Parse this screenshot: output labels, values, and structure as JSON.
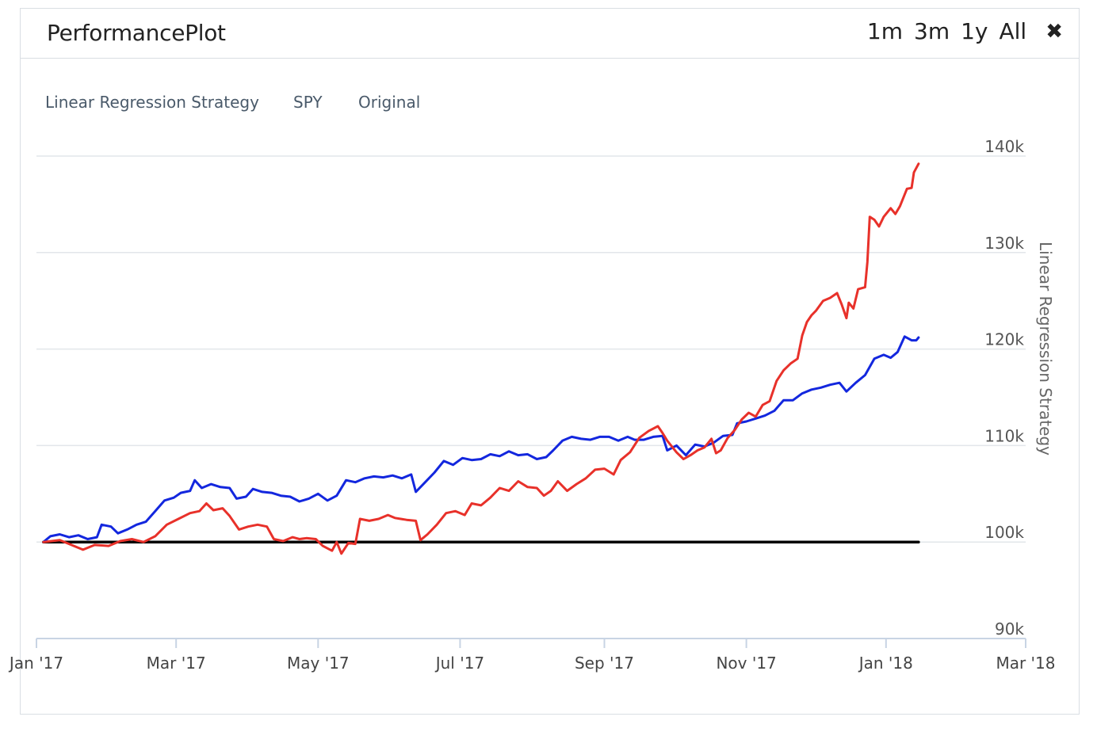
{
  "header": {
    "title": "PerformancePlot",
    "ranges": [
      "1m",
      "3m",
      "1y",
      "All"
    ],
    "close_icon": "close-icon"
  },
  "chart_data": {
    "type": "line",
    "title": "",
    "xlabel": "",
    "ylabel": "Linear Regression Strategy",
    "legend": [
      "Linear Regression Strategy",
      "SPY",
      "Original"
    ],
    "legend_position": "top-left",
    "grid": true,
    "xlim": [
      "2016-12-31",
      "2018-03-01"
    ],
    "ylim": [
      90000,
      140000
    ],
    "x_ticks": [
      {
        "date": "2016-12-31",
        "label": "Jan '17"
      },
      {
        "date": "2017-03-01",
        "label": "Mar '17"
      },
      {
        "date": "2017-05-01",
        "label": "May '17"
      },
      {
        "date": "2017-07-01",
        "label": "Jul '17"
      },
      {
        "date": "2017-09-01",
        "label": "Sep '17"
      },
      {
        "date": "2017-11-01",
        "label": "Nov '17"
      },
      {
        "date": "2017-12-31",
        "label": "Jan '18"
      },
      {
        "date": "2018-03-01",
        "label": "Mar '18"
      }
    ],
    "y_ticks": [
      {
        "value": 90000,
        "label": "90k"
      },
      {
        "value": 100000,
        "label": "100k"
      },
      {
        "value": 110000,
        "label": "110k"
      },
      {
        "value": 120000,
        "label": "120k"
      },
      {
        "value": 130000,
        "label": "130k"
      },
      {
        "value": 140000,
        "label": "140k"
      }
    ],
    "series": [
      {
        "name": "Linear Regression Strategy",
        "color": "#e8312a",
        "points": [
          [
            "2017-01-03",
            100000
          ],
          [
            "2017-01-10",
            100200
          ],
          [
            "2017-01-17",
            99500
          ],
          [
            "2017-01-20",
            99200
          ],
          [
            "2017-01-25",
            99700
          ],
          [
            "2017-01-31",
            99600
          ],
          [
            "2017-02-05",
            100100
          ],
          [
            "2017-02-10",
            100300
          ],
          [
            "2017-02-15",
            100000
          ],
          [
            "2017-02-20",
            100600
          ],
          [
            "2017-02-25",
            101800
          ],
          [
            "2017-03-02",
            102400
          ],
          [
            "2017-03-07",
            103000
          ],
          [
            "2017-03-11",
            103200
          ],
          [
            "2017-03-14",
            104000
          ],
          [
            "2017-03-17",
            103300
          ],
          [
            "2017-03-21",
            103500
          ],
          [
            "2017-03-24",
            102700
          ],
          [
            "2017-03-28",
            101300
          ],
          [
            "2017-04-01",
            101600
          ],
          [
            "2017-04-05",
            101800
          ],
          [
            "2017-04-09",
            101600
          ],
          [
            "2017-04-12",
            100300
          ],
          [
            "2017-04-16",
            100100
          ],
          [
            "2017-04-20",
            100500
          ],
          [
            "2017-04-23",
            100300
          ],
          [
            "2017-04-26",
            100400
          ],
          [
            "2017-04-30",
            100300
          ],
          [
            "2017-05-03",
            99600
          ],
          [
            "2017-05-07",
            99100
          ],
          [
            "2017-05-09",
            100000
          ],
          [
            "2017-05-11",
            98800
          ],
          [
            "2017-05-14",
            99900
          ],
          [
            "2017-05-17",
            99800
          ],
          [
            "2017-05-19",
            102400
          ],
          [
            "2017-05-23",
            102200
          ],
          [
            "2017-05-27",
            102400
          ],
          [
            "2017-05-31",
            102800
          ],
          [
            "2017-06-03",
            102500
          ],
          [
            "2017-06-08",
            102300
          ],
          [
            "2017-06-12",
            102200
          ],
          [
            "2017-06-14",
            100200
          ],
          [
            "2017-06-17",
            100800
          ],
          [
            "2017-06-21",
            101800
          ],
          [
            "2017-06-25",
            103000
          ],
          [
            "2017-06-29",
            103200
          ],
          [
            "2017-07-03",
            102800
          ],
          [
            "2017-07-06",
            104000
          ],
          [
            "2017-07-10",
            103800
          ],
          [
            "2017-07-14",
            104600
          ],
          [
            "2017-07-18",
            105600
          ],
          [
            "2017-07-22",
            105300
          ],
          [
            "2017-07-26",
            106300
          ],
          [
            "2017-07-30",
            105700
          ],
          [
            "2017-08-03",
            105600
          ],
          [
            "2017-08-06",
            104800
          ],
          [
            "2017-08-09",
            105300
          ],
          [
            "2017-08-12",
            106300
          ],
          [
            "2017-08-16",
            105300
          ],
          [
            "2017-08-20",
            106000
          ],
          [
            "2017-08-24",
            106600
          ],
          [
            "2017-08-28",
            107500
          ],
          [
            "2017-09-01",
            107600
          ],
          [
            "2017-09-05",
            107000
          ],
          [
            "2017-09-08",
            108500
          ],
          [
            "2017-09-12",
            109300
          ],
          [
            "2017-09-16",
            110800
          ],
          [
            "2017-09-20",
            111500
          ],
          [
            "2017-09-24",
            112000
          ],
          [
            "2017-09-26",
            111300
          ],
          [
            "2017-09-28",
            110500
          ],
          [
            "2017-10-02",
            109300
          ],
          [
            "2017-10-05",
            108600
          ],
          [
            "2017-10-08",
            109000
          ],
          [
            "2017-10-11",
            109500
          ],
          [
            "2017-10-14",
            109800
          ],
          [
            "2017-10-17",
            110700
          ],
          [
            "2017-10-19",
            109200
          ],
          [
            "2017-10-21",
            109500
          ],
          [
            "2017-10-24",
            110800
          ],
          [
            "2017-10-27",
            111600
          ],
          [
            "2017-10-30",
            112700
          ],
          [
            "2017-11-02",
            113400
          ],
          [
            "2017-11-05",
            113000
          ],
          [
            "2017-11-08",
            114200
          ],
          [
            "2017-11-11",
            114600
          ],
          [
            "2017-11-14",
            116700
          ],
          [
            "2017-11-17",
            117800
          ],
          [
            "2017-11-20",
            118500
          ],
          [
            "2017-11-23",
            119000
          ],
          [
            "2017-11-25",
            121400
          ],
          [
            "2017-11-27",
            122800
          ],
          [
            "2017-11-29",
            123500
          ],
          [
            "2017-12-01",
            124000
          ],
          [
            "2017-12-04",
            125000
          ],
          [
            "2017-12-07",
            125300
          ],
          [
            "2017-12-10",
            125800
          ],
          [
            "2017-12-12",
            124600
          ],
          [
            "2017-12-14",
            123200
          ],
          [
            "2017-12-15",
            124800
          ],
          [
            "2017-12-17",
            124200
          ],
          [
            "2017-12-19",
            126200
          ],
          [
            "2017-12-22",
            126400
          ],
          [
            "2017-12-23",
            129000
          ],
          [
            "2017-12-24",
            133700
          ],
          [
            "2017-12-26",
            133400
          ],
          [
            "2017-12-28",
            132700
          ],
          [
            "2017-12-30",
            133700
          ],
          [
            "2018-01-02",
            134600
          ],
          [
            "2018-01-04",
            134000
          ],
          [
            "2018-01-06",
            134800
          ],
          [
            "2018-01-09",
            136600
          ],
          [
            "2018-01-11",
            136700
          ],
          [
            "2018-01-12",
            138300
          ],
          [
            "2018-01-14",
            139200
          ]
        ]
      },
      {
        "name": "SPY",
        "color": "#1327de",
        "points": [
          [
            "2017-01-03",
            100000
          ],
          [
            "2017-01-06",
            100600
          ],
          [
            "2017-01-10",
            100800
          ],
          [
            "2017-01-14",
            100500
          ],
          [
            "2017-01-18",
            100700
          ],
          [
            "2017-01-22",
            100300
          ],
          [
            "2017-01-26",
            100500
          ],
          [
            "2017-01-28",
            101800
          ],
          [
            "2017-02-01",
            101600
          ],
          [
            "2017-02-04",
            100900
          ],
          [
            "2017-02-08",
            101300
          ],
          [
            "2017-02-12",
            101800
          ],
          [
            "2017-02-16",
            102100
          ],
          [
            "2017-02-20",
            103200
          ],
          [
            "2017-02-24",
            104300
          ],
          [
            "2017-02-28",
            104600
          ],
          [
            "2017-03-03",
            105100
          ],
          [
            "2017-03-07",
            105300
          ],
          [
            "2017-03-09",
            106400
          ],
          [
            "2017-03-12",
            105600
          ],
          [
            "2017-03-16",
            106000
          ],
          [
            "2017-03-20",
            105700
          ],
          [
            "2017-03-24",
            105600
          ],
          [
            "2017-03-27",
            104500
          ],
          [
            "2017-03-31",
            104700
          ],
          [
            "2017-04-03",
            105500
          ],
          [
            "2017-04-07",
            105200
          ],
          [
            "2017-04-11",
            105100
          ],
          [
            "2017-04-15",
            104800
          ],
          [
            "2017-04-19",
            104700
          ],
          [
            "2017-04-23",
            104200
          ],
          [
            "2017-04-27",
            104500
          ],
          [
            "2017-05-01",
            105000
          ],
          [
            "2017-05-05",
            104300
          ],
          [
            "2017-05-09",
            104800
          ],
          [
            "2017-05-13",
            106400
          ],
          [
            "2017-05-17",
            106200
          ],
          [
            "2017-05-21",
            106600
          ],
          [
            "2017-05-25",
            106800
          ],
          [
            "2017-05-29",
            106700
          ],
          [
            "2017-06-02",
            106900
          ],
          [
            "2017-06-06",
            106600
          ],
          [
            "2017-06-10",
            107000
          ],
          [
            "2017-06-12",
            105200
          ],
          [
            "2017-06-16",
            106200
          ],
          [
            "2017-06-20",
            107200
          ],
          [
            "2017-06-24",
            108400
          ],
          [
            "2017-06-28",
            108000
          ],
          [
            "2017-07-02",
            108700
          ],
          [
            "2017-07-06",
            108500
          ],
          [
            "2017-07-10",
            108600
          ],
          [
            "2017-07-14",
            109100
          ],
          [
            "2017-07-18",
            108900
          ],
          [
            "2017-07-22",
            109400
          ],
          [
            "2017-07-26",
            109000
          ],
          [
            "2017-07-30",
            109100
          ],
          [
            "2017-08-03",
            108600
          ],
          [
            "2017-08-07",
            108800
          ],
          [
            "2017-08-10",
            109500
          ],
          [
            "2017-08-14",
            110500
          ],
          [
            "2017-08-18",
            110900
          ],
          [
            "2017-08-22",
            110700
          ],
          [
            "2017-08-26",
            110600
          ],
          [
            "2017-08-30",
            110900
          ],
          [
            "2017-09-03",
            110900
          ],
          [
            "2017-09-07",
            110500
          ],
          [
            "2017-09-11",
            110900
          ],
          [
            "2017-09-14",
            110600
          ],
          [
            "2017-09-18",
            110600
          ],
          [
            "2017-09-22",
            110900
          ],
          [
            "2017-09-26",
            111000
          ],
          [
            "2017-09-28",
            109500
          ],
          [
            "2017-10-02",
            110000
          ],
          [
            "2017-10-06",
            109000
          ],
          [
            "2017-10-10",
            110100
          ],
          [
            "2017-10-14",
            109900
          ],
          [
            "2017-10-18",
            110300
          ],
          [
            "2017-10-22",
            111000
          ],
          [
            "2017-10-26",
            111100
          ],
          [
            "2017-10-28",
            112300
          ],
          [
            "2017-11-01",
            112500
          ],
          [
            "2017-11-05",
            112800
          ],
          [
            "2017-11-09",
            113100
          ],
          [
            "2017-11-13",
            113600
          ],
          [
            "2017-11-17",
            114700
          ],
          [
            "2017-11-21",
            114700
          ],
          [
            "2017-11-25",
            115400
          ],
          [
            "2017-11-29",
            115800
          ],
          [
            "2017-12-03",
            116000
          ],
          [
            "2017-12-07",
            116300
          ],
          [
            "2017-12-11",
            116500
          ],
          [
            "2017-12-14",
            115600
          ],
          [
            "2017-12-18",
            116500
          ],
          [
            "2017-12-22",
            117300
          ],
          [
            "2017-12-26",
            119000
          ],
          [
            "2017-12-30",
            119400
          ],
          [
            "2018-01-02",
            119100
          ],
          [
            "2018-01-05",
            119700
          ],
          [
            "2018-01-08",
            121300
          ],
          [
            "2018-01-11",
            120900
          ],
          [
            "2018-01-13",
            120900
          ],
          [
            "2018-01-14",
            121200
          ]
        ]
      },
      {
        "name": "Original",
        "color": "#000000",
        "points": [
          [
            "2017-01-03",
            100000
          ],
          [
            "2018-01-14",
            100000
          ]
        ]
      }
    ]
  }
}
